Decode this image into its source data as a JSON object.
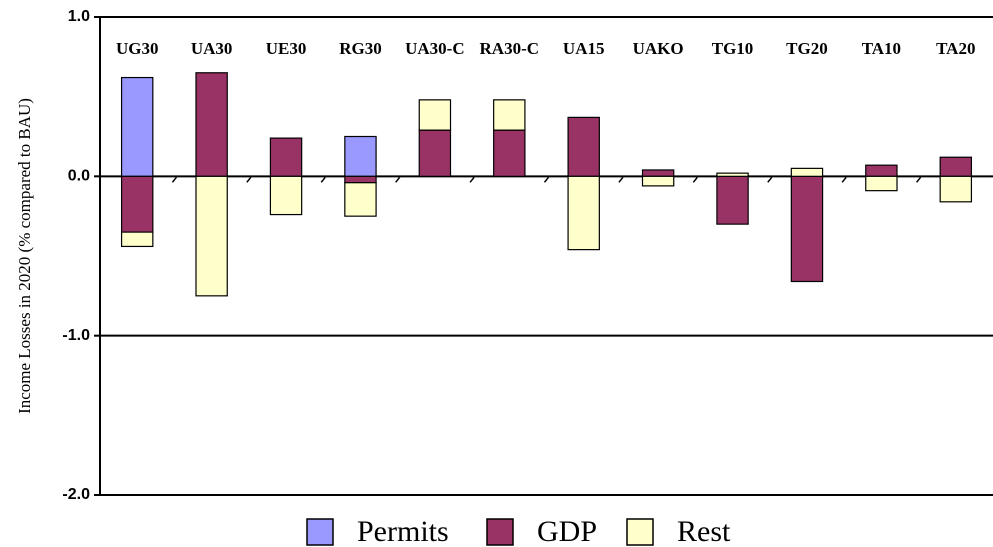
{
  "chart_data": {
    "type": "stacked_bar",
    "y_label": "Income Losses in 2020 (% compared to BAU)",
    "categories": [
      "UG30",
      "UA30",
      "UE30",
      "RG30",
      "UA30-C",
      "RA30-C",
      "UA15",
      "UAKO",
      "TG10",
      "TG20",
      "TA10",
      "TA20"
    ],
    "series": [
      {
        "name": "Permits",
        "color": "#9999ff",
        "values": [
          0.62,
          0,
          0,
          0.25,
          0,
          0,
          0,
          0,
          0,
          0,
          0,
          0
        ]
      },
      {
        "name": "GDP",
        "color": "#993366",
        "values": [
          -0.35,
          0.65,
          0.24,
          -0.04,
          0.29,
          0.29,
          0.37,
          0.04,
          -0.3,
          -0.66,
          0.07,
          0.12
        ]
      },
      {
        "name": "Rest",
        "color": "#ffffcc",
        "values": [
          -0.09,
          -0.75,
          -0.24,
          -0.21,
          0.19,
          0.19,
          -0.46,
          -0.06,
          0.02,
          0.05,
          -0.09,
          -0.16
        ]
      }
    ],
    "ylim": [
      -2.0,
      1.0
    ],
    "yticks": [
      {
        "value": 1.0,
        "label": "1.0"
      },
      {
        "value": 0.0,
        "label": "0.0"
      },
      {
        "value": -1.0,
        "label": "-1.0"
      },
      {
        "value": -2.0,
        "label": "-2.0"
      }
    ],
    "grid": true,
    "legend": "bottom"
  }
}
